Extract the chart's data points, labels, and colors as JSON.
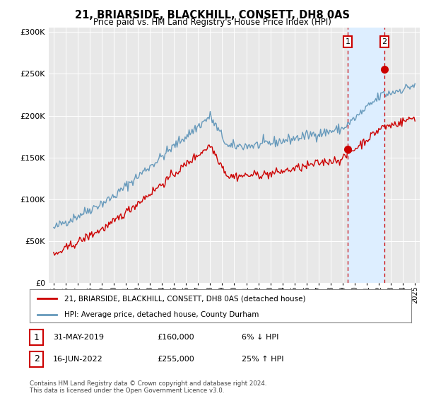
{
  "title": "21, BRIARSIDE, BLACKHILL, CONSETT, DH8 0AS",
  "subtitle": "Price paid vs. HM Land Registry's House Price Index (HPI)",
  "red_label": "21, BRIARSIDE, BLACKHILL, CONSETT, DH8 0AS (detached house)",
  "blue_label": "HPI: Average price, detached house, County Durham",
  "transaction1_date": "31-MAY-2019",
  "transaction1_price": "£160,000",
  "transaction1_hpi": "6% ↓ HPI",
  "transaction1_year": 2019.42,
  "transaction1_value": 160000,
  "transaction2_date": "16-JUN-2022",
  "transaction2_price": "£255,000",
  "transaction2_hpi": "25% ↑ HPI",
  "transaction2_year": 2022.46,
  "transaction2_value": 255000,
  "footer": "Contains HM Land Registry data © Crown copyright and database right 2024.\nThis data is licensed under the Open Government Licence v3.0.",
  "background_color": "#ffffff",
  "plot_bg_color": "#e8e8e8",
  "shade_color": "#ddeeff",
  "red_color": "#cc0000",
  "blue_color": "#6699bb"
}
